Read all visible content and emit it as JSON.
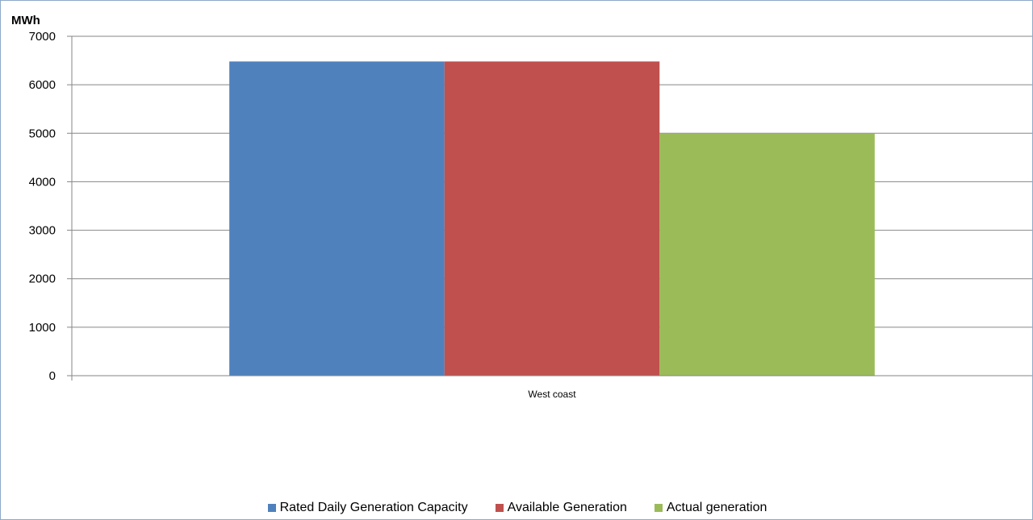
{
  "chart_data": {
    "type": "bar",
    "ylabel": "MWh",
    "xlabel": "",
    "categories": [
      "West coast"
    ],
    "ylim": [
      0,
      7000
    ],
    "yticks": [
      0,
      1000,
      2000,
      3000,
      4000,
      5000,
      6000,
      7000
    ],
    "grid": true,
    "legend_position": "bottom",
    "series": [
      {
        "name": "Rated Daily Generation Capacity",
        "values": [
          6480
        ],
        "color": "#4f81bd"
      },
      {
        "name": "Available Generation",
        "values": [
          6480
        ],
        "color": "#c0504d"
      },
      {
        "name": "Actual generation",
        "values": [
          5000
        ],
        "color": "#9bbb59"
      }
    ]
  }
}
